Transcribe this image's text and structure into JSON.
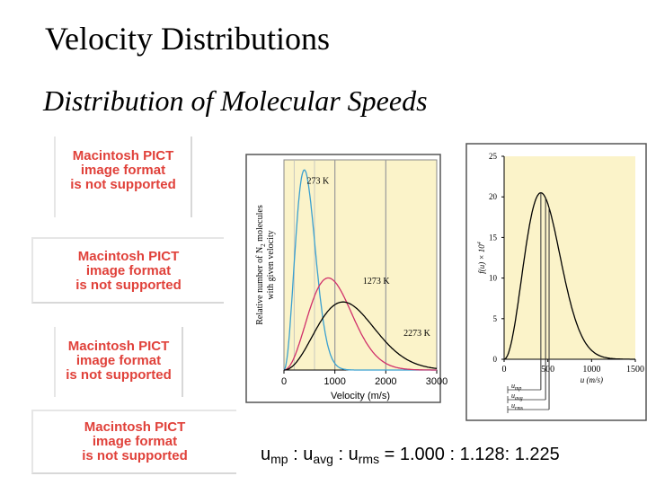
{
  "slide": {
    "title": "Velocity Distributions",
    "subtitle": "Distribution of Molecular Speeds",
    "ratio": {
      "u1": "u",
      "s1": "mp",
      "sep1": " : ",
      "u2": "u",
      "s2": "avg",
      "sep2": " : ",
      "u3": "u",
      "s3": "rms",
      "rest": " = 1.000 : 1.128: 1.225"
    }
  },
  "placeholders": [
    {
      "line1": "Macintosh PICT",
      "line2": "image format",
      "line3": "is not supported"
    },
    {
      "line1": "Macintosh PICT",
      "line2": "image format",
      "line3": "is not supported"
    },
    {
      "line1": "Macintosh PICT",
      "line2": "image format",
      "line3": "is not supported"
    },
    {
      "line1": "Macintosh PICT",
      "line2": "image format",
      "line3": "is not supported"
    }
  ],
  "chart_data": [
    {
      "type": "line",
      "xlabel": "Velocity (m/s)",
      "ylabel_line1": "Relative number of N",
      "ylabel_sub": "2",
      "ylabel_line1b": " molecules",
      "ylabel_line2": "with given velocity",
      "xlim": [
        0,
        3000
      ],
      "xticks": [
        "0",
        "1000",
        "2000",
        "3000"
      ],
      "xtick_values": [
        0,
        1000,
        2000,
        3000
      ],
      "background": "#fbf3c9",
      "grid": true,
      "series": [
        {
          "name": "273 K",
          "color": "#3aa0d0",
          "peak_x": 400,
          "peak_y": 1.0,
          "label_x": 450,
          "label_y": 0.93
        },
        {
          "name": "1273 K",
          "color": "#d0306a",
          "peak_x": 870,
          "peak_y": 0.46,
          "label_x": 1550,
          "label_y": 0.43
        },
        {
          "name": "2273 K",
          "color": "#000000",
          "peak_x": 1160,
          "peak_y": 0.34,
          "label_x": 2350,
          "label_y": 0.17
        }
      ]
    },
    {
      "type": "line",
      "ylabel": "f(u) × 10",
      "ylabel_sup": "4",
      "xlabel": "u (m/s)",
      "xlim": [
        0,
        1500
      ],
      "ylim": [
        0,
        25
      ],
      "xticks": [
        "0",
        "500",
        "1000",
        "1500"
      ],
      "xtick_values": [
        0,
        500,
        1000,
        1500
      ],
      "yticks": [
        "0",
        "5",
        "10",
        "15",
        "20",
        "25"
      ],
      "ytick_values": [
        0,
        5,
        10,
        15,
        20,
        25
      ],
      "background": "#fbf3c9",
      "series": [
        {
          "name": "",
          "color": "#000000",
          "peak_x": 420,
          "peak_y": 20.5
        }
      ],
      "markers": [
        {
          "label": "u",
          "sub": "mp",
          "x": 420
        },
        {
          "label": "u",
          "sub": "avg",
          "x": 474
        },
        {
          "label": "u",
          "sub": "rms",
          "x": 514
        }
      ]
    }
  ]
}
